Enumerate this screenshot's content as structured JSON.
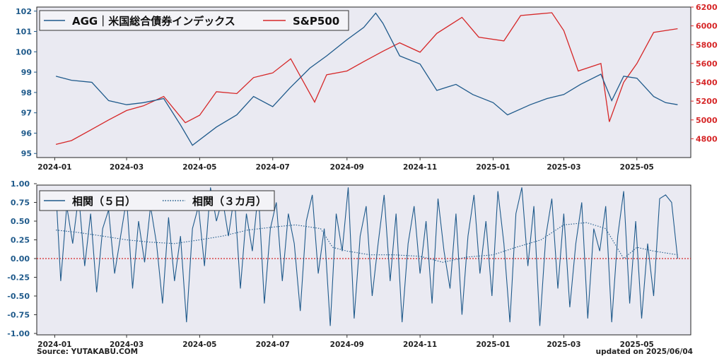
{
  "footer": {
    "source": "Source: YUTAKABU.COM",
    "updated": "updated on 2025/06/04"
  },
  "colors": {
    "agg": "#1f5a8b",
    "sp500": "#d62728",
    "zero_line": "#d62728",
    "panel_bg": "#eaeaf2"
  },
  "chart_data": [
    {
      "type": "line",
      "legend": "top-left",
      "x_ticks": [
        "2024-01",
        "2024-03",
        "2024-05",
        "2024-07",
        "2024-09",
        "2024-11",
        "2025-01",
        "2025-03",
        "2025-05"
      ],
      "y_left": {
        "ylim": [
          94.8,
          102.2
        ],
        "ticks": [
          "95",
          "96",
          "97",
          "98",
          "99",
          "100",
          "101",
          "102"
        ]
      },
      "y_right": {
        "ylim": [
          4600,
          6200
        ],
        "ticks": [
          "4800",
          "5000",
          "5200",
          "5400",
          "5600",
          "5800",
          "6000",
          "6200"
        ]
      },
      "series": [
        {
          "name": "AGG｜米国総合債券インデックス",
          "axis": "left",
          "dates": [
            "2024-01-02",
            "2024-01-15",
            "2024-02-01",
            "2024-02-15",
            "2024-03-01",
            "2024-03-15",
            "2024-04-01",
            "2024-04-15",
            "2024-04-25",
            "2024-05-15",
            "2024-06-01",
            "2024-06-15",
            "2024-07-01",
            "2024-07-15",
            "2024-08-01",
            "2024-08-15",
            "2024-09-01",
            "2024-09-15",
            "2024-09-25",
            "2024-10-01",
            "2024-10-15",
            "2024-11-01",
            "2024-11-15",
            "2024-12-01",
            "2024-12-15",
            "2025-01-01",
            "2025-01-13",
            "2025-02-01",
            "2025-02-15",
            "2025-03-01",
            "2025-03-15",
            "2025-04-01",
            "2025-04-10",
            "2025-04-20",
            "2025-05-01",
            "2025-05-15",
            "2025-05-25",
            "2025-06-04"
          ],
          "values": [
            98.8,
            98.6,
            98.5,
            97.6,
            97.4,
            97.5,
            97.7,
            96.4,
            95.4,
            96.3,
            96.9,
            97.8,
            97.3,
            98.2,
            99.2,
            99.8,
            100.6,
            101.2,
            101.9,
            101.4,
            99.8,
            99.4,
            98.1,
            98.4,
            97.9,
            97.5,
            96.9,
            97.4,
            97.7,
            97.9,
            98.4,
            98.9,
            97.6,
            98.8,
            98.7,
            97.8,
            97.5,
            97.4
          ]
        },
        {
          "name": "S&P500",
          "axis": "right",
          "dates": [
            "2024-01-02",
            "2024-01-15",
            "2024-02-01",
            "2024-02-15",
            "2024-03-01",
            "2024-03-15",
            "2024-04-01",
            "2024-04-19",
            "2024-05-01",
            "2024-05-15",
            "2024-06-01",
            "2024-06-15",
            "2024-07-01",
            "2024-07-16",
            "2024-08-05",
            "2024-08-15",
            "2024-09-01",
            "2024-09-15",
            "2024-10-01",
            "2024-10-15",
            "2024-11-01",
            "2024-11-15",
            "2024-12-06",
            "2024-12-20",
            "2025-01-10",
            "2025-01-24",
            "2025-02-19",
            "2025-03-01",
            "2025-03-13",
            "2025-04-01",
            "2025-04-08",
            "2025-04-20",
            "2025-05-01",
            "2025-05-15",
            "2025-06-04"
          ],
          "values": [
            4740,
            4780,
            4900,
            5000,
            5100,
            5150,
            5250,
            4970,
            5050,
            5300,
            5280,
            5450,
            5500,
            5650,
            5190,
            5480,
            5520,
            5620,
            5730,
            5820,
            5720,
            5920,
            6090,
            5880,
            5840,
            6110,
            6140,
            5950,
            5520,
            5600,
            4980,
            5400,
            5600,
            5930,
            5970
          ]
        }
      ]
    },
    {
      "type": "line",
      "legend": "top-left",
      "x_ticks": [
        "2024-01",
        "2024-03",
        "2024-05",
        "2024-07",
        "2024-09",
        "2024-11",
        "2025-01",
        "2025-03",
        "2025-05"
      ],
      "ylim": [
        -1.0,
        1.0
      ],
      "y_ticks": [
        "1.00",
        "0.75",
        "0.50",
        "0.25",
        "0.00",
        "-0.25",
        "-0.50",
        "-0.75",
        "-1.00"
      ],
      "reference_line": 0.0,
      "series": [
        {
          "name": "相関（５日）",
          "style": "solid",
          "dates": [
            "2024-01-02",
            "2024-01-06",
            "2024-01-11",
            "2024-01-16",
            "2024-01-21",
            "2024-01-26",
            "2024-01-31",
            "2024-02-05",
            "2024-02-10",
            "2024-02-15",
            "2024-02-20",
            "2024-02-25",
            "2024-03-01",
            "2024-03-06",
            "2024-03-11",
            "2024-03-16",
            "2024-03-21",
            "2024-03-26",
            "2024-03-31",
            "2024-04-05",
            "2024-04-10",
            "2024-04-15",
            "2024-04-20",
            "2024-04-25",
            "2024-04-30",
            "2024-05-05",
            "2024-05-10",
            "2024-05-15",
            "2024-05-20",
            "2024-05-25",
            "2024-05-30",
            "2024-06-04",
            "2024-06-09",
            "2024-06-14",
            "2024-06-19",
            "2024-06-24",
            "2024-06-29",
            "2024-07-04",
            "2024-07-09",
            "2024-07-14",
            "2024-07-19",
            "2024-07-24",
            "2024-07-29",
            "2024-08-03",
            "2024-08-08",
            "2024-08-13",
            "2024-08-18",
            "2024-08-23",
            "2024-08-28",
            "2024-09-02",
            "2024-09-07",
            "2024-09-12",
            "2024-09-17",
            "2024-09-22",
            "2024-09-27",
            "2024-10-02",
            "2024-10-07",
            "2024-10-12",
            "2024-10-17",
            "2024-10-22",
            "2024-10-27",
            "2024-11-01",
            "2024-11-06",
            "2024-11-11",
            "2024-11-16",
            "2024-11-21",
            "2024-11-26",
            "2024-12-01",
            "2024-12-06",
            "2024-12-11",
            "2024-12-16",
            "2024-12-21",
            "2024-12-26",
            "2024-12-31",
            "2025-01-05",
            "2025-01-10",
            "2025-01-15",
            "2025-01-20",
            "2025-01-25",
            "2025-01-30",
            "2025-02-04",
            "2025-02-09",
            "2025-02-14",
            "2025-02-19",
            "2025-02-24",
            "2025-03-01",
            "2025-03-06",
            "2025-03-11",
            "2025-03-16",
            "2025-03-21",
            "2025-03-26",
            "2025-03-31",
            "2025-04-05",
            "2025-04-10",
            "2025-04-15",
            "2025-04-20",
            "2025-04-25",
            "2025-04-30",
            "2025-05-05",
            "2025-05-10",
            "2025-05-15",
            "2025-05-20",
            "2025-05-25",
            "2025-05-30",
            "2025-06-04"
          ],
          "values": [
            0.9,
            -0.3,
            0.7,
            0.2,
            0.85,
            -0.1,
            0.6,
            -0.45,
            0.4,
            0.65,
            -0.2,
            0.3,
            0.8,
            -0.4,
            0.5,
            -0.05,
            0.7,
            0.2,
            -0.6,
            0.55,
            -0.3,
            0.3,
            -0.85,
            0.4,
            0.7,
            -0.1,
            0.95,
            0.5,
            0.8,
            0.3,
            0.85,
            -0.4,
            0.6,
            0.1,
            0.9,
            -0.6,
            0.4,
            0.75,
            -0.3,
            0.6,
            0.2,
            -0.7,
            0.5,
            0.85,
            -0.2,
            0.4,
            -0.9,
            0.6,
            0.1,
            0.95,
            -0.8,
            0.3,
            0.7,
            -0.5,
            0.2,
            0.85,
            -0.3,
            0.6,
            -0.85,
            0.2,
            0.7,
            -0.2,
            0.5,
            -0.6,
            0.8,
            0.1,
            -0.4,
            0.6,
            -0.75,
            0.3,
            0.85,
            -0.2,
            0.5,
            -0.5,
            0.9,
            0.2,
            -0.85,
            0.6,
            0.95,
            -0.1,
            0.7,
            -0.9,
            0.3,
            0.8,
            -0.4,
            0.6,
            -0.65,
            0.2,
            0.75,
            -0.8,
            0.4,
            0.1,
            0.7,
            -0.85,
            0.3,
            0.9,
            -0.6,
            0.5,
            -0.8,
            0.2,
            -0.5,
            0.8,
            0.85,
            0.75,
            0.0
          ]
        },
        {
          "name": "相関（３カ月）",
          "style": "dotted",
          "dates": [
            "2024-01-02",
            "2024-01-20",
            "2024-02-10",
            "2024-03-01",
            "2024-03-20",
            "2024-04-10",
            "2024-05-01",
            "2024-05-20",
            "2024-06-10",
            "2024-07-01",
            "2024-07-20",
            "2024-08-10",
            "2024-08-20",
            "2024-09-01",
            "2024-09-20",
            "2024-10-10",
            "2024-11-01",
            "2024-11-20",
            "2024-12-10",
            "2025-01-01",
            "2025-01-20",
            "2025-02-10",
            "2025-03-01",
            "2025-03-20",
            "2025-04-05",
            "2025-04-20",
            "2025-05-01",
            "2025-05-15",
            "2025-06-04"
          ],
          "values": [
            0.38,
            0.35,
            0.3,
            0.25,
            0.22,
            0.2,
            0.25,
            0.3,
            0.38,
            0.42,
            0.45,
            0.4,
            0.15,
            0.1,
            0.05,
            0.05,
            0.03,
            -0.05,
            0.02,
            0.05,
            0.15,
            0.25,
            0.45,
            0.48,
            0.4,
            0.0,
            0.15,
            0.1,
            0.05
          ]
        }
      ]
    }
  ]
}
